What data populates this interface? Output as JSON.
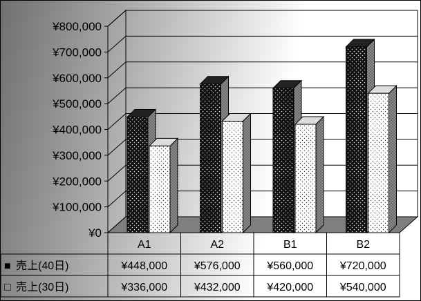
{
  "chart_data": {
    "type": "bar",
    "style": "3d-clustered-column-with-data-table",
    "categories": [
      "A1",
      "A2",
      "B1",
      "B2"
    ],
    "series": [
      {
        "name": "売上(40日)",
        "values": [
          448000,
          576000,
          560000,
          720000
        ],
        "pattern": "black-dotted",
        "legend_key": "■"
      },
      {
        "name": "売上(30日)",
        "values": [
          336000,
          432000,
          420000,
          540000
        ],
        "pattern": "white-dotted",
        "legend_key": "□"
      }
    ],
    "table_values": [
      [
        "¥448,000",
        "¥576,000",
        "¥560,000",
        "¥720,000"
      ],
      [
        "¥336,000",
        "¥432,000",
        "¥420,000",
        "¥540,000"
      ]
    ],
    "y_ticks": [
      "¥0",
      "¥100,000",
      "¥200,000",
      "¥300,000",
      "¥400,000",
      "¥500,000",
      "¥600,000",
      "¥700,000",
      "¥800,000"
    ],
    "ylim": [
      0,
      800000
    ],
    "grid": true,
    "legend": "in-data-table",
    "colors": {
      "series1": "#111111",
      "series2": "#ffffff",
      "floor": "#7f7f7f",
      "grid": "#000000"
    }
  }
}
